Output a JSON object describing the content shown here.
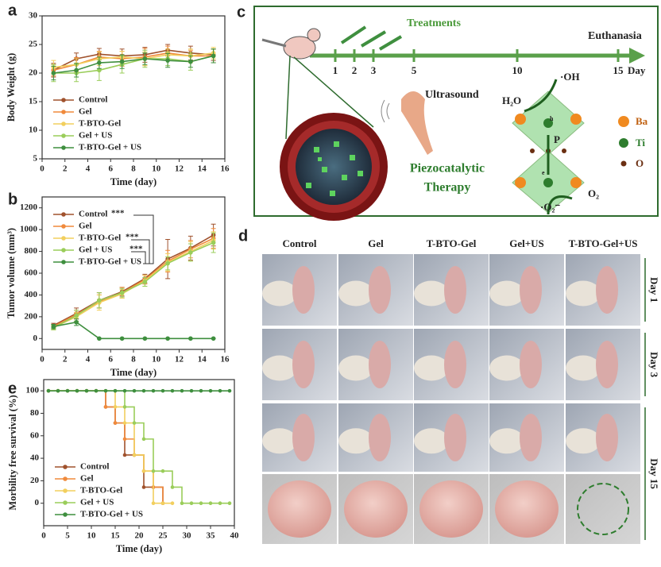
{
  "chart_data": [
    {
      "type": "line",
      "panel": "a",
      "x_label": "Time (day)",
      "y_label": "Body Weight (g)",
      "x": [
        1,
        3,
        5,
        7,
        9,
        11,
        13,
        15
      ],
      "xlim": [
        0,
        16
      ],
      "xticks": [
        0,
        2,
        4,
        6,
        8,
        10,
        12,
        14,
        16
      ],
      "ylim": [
        5,
        30
      ],
      "yticks": [
        5,
        10,
        15,
        20,
        25,
        30
      ],
      "legend": "lower left",
      "series": [
        {
          "name": "Control",
          "color": "#a0522d",
          "values": [
            20.5,
            22.5,
            23.3,
            23.0,
            23.2,
            24.0,
            23.5,
            23.2
          ],
          "errors": [
            1.2,
            1.0,
            1.0,
            1.2,
            1.3,
            1.0,
            1.2,
            1.0
          ]
        },
        {
          "name": "Gel",
          "color": "#f08a3c",
          "values": [
            20.5,
            21.5,
            22.8,
            22.5,
            22.8,
            23.5,
            23.0,
            23.0
          ],
          "errors": [
            1.0,
            1.2,
            1.0,
            1.3,
            1.5,
            1.2,
            1.0,
            1.2
          ]
        },
        {
          "name": "T-BTO-Gel",
          "color": "#f2cf5e",
          "values": [
            21.0,
            21.5,
            22.5,
            22.8,
            22.5,
            23.2,
            23.0,
            23.5
          ],
          "errors": [
            1.2,
            1.0,
            1.2,
            1.0,
            1.2,
            1.0,
            1.2,
            1.0
          ]
        },
        {
          "name": "Gel + US",
          "color": "#9acd5a",
          "values": [
            20.0,
            20.0,
            20.5,
            21.5,
            22.5,
            22.5,
            22.0,
            23.0
          ],
          "errors": [
            1.5,
            1.5,
            1.8,
            1.5,
            1.5,
            1.2,
            1.5,
            1.2
          ]
        },
        {
          "name": "T-BTO-Gel + US",
          "color": "#3f8f3f",
          "values": [
            20.0,
            20.5,
            21.8,
            22.0,
            22.5,
            22.2,
            22.0,
            23.0
          ],
          "errors": [
            1.2,
            1.2,
            1.0,
            1.2,
            1.0,
            1.2,
            1.0,
            1.2
          ]
        }
      ]
    },
    {
      "type": "line",
      "panel": "b",
      "x_label": "Time (day)",
      "y_label": "Tumor volume (mm³)",
      "x": [
        1,
        3,
        5,
        7,
        9,
        11,
        13,
        15
      ],
      "xlim": [
        0,
        16
      ],
      "xticks": [
        0,
        2,
        4,
        6,
        8,
        10,
        12,
        14,
        16
      ],
      "ylim": [
        -100,
        1300
      ],
      "yticks": [
        0,
        200,
        400,
        600,
        800,
        1000,
        1200
      ],
      "legend": "upper left",
      "annotations": [
        "***",
        "***",
        "***"
      ],
      "series": [
        {
          "name": "Control",
          "color": "#a0522d",
          "values": [
            120,
            230,
            350,
            430,
            550,
            730,
            830,
            950
          ],
          "errors": [
            20,
            50,
            70,
            40,
            40,
            180,
            110,
            100
          ]
        },
        {
          "name": "Gel",
          "color": "#f08a3c",
          "values": [
            110,
            220,
            340,
            420,
            540,
            710,
            820,
            920
          ],
          "errors": [
            20,
            40,
            60,
            50,
            40,
            100,
            80,
            90
          ]
        },
        {
          "name": "T-BTO-Gel",
          "color": "#f2cf5e",
          "values": [
            100,
            200,
            330,
            410,
            530,
            700,
            800,
            900
          ],
          "errors": [
            20,
            40,
            70,
            40,
            50,
            80,
            90,
            80
          ]
        },
        {
          "name": "Gel + US",
          "color": "#9acd5a",
          "values": [
            100,
            210,
            350,
            420,
            520,
            690,
            790,
            880
          ],
          "errors": [
            20,
            50,
            70,
            40,
            40,
            60,
            80,
            90
          ]
        },
        {
          "name": "T-BTO-Gel + US",
          "color": "#3f8f3f",
          "values": [
            110,
            150,
            0,
            0,
            0,
            0,
            0,
            0
          ],
          "errors": [
            20,
            30,
            0,
            0,
            0,
            0,
            0,
            0
          ]
        }
      ]
    },
    {
      "type": "step",
      "panel": "e",
      "x_label": "Time (day)",
      "y_label": "Morbility free survival (%)",
      "x": [
        1,
        3,
        5,
        7,
        9,
        11,
        13,
        15,
        17,
        19,
        21,
        23,
        25,
        27,
        29,
        31,
        33,
        35,
        37,
        39
      ],
      "xlim": [
        0,
        40
      ],
      "xticks": [
        0,
        5,
        10,
        15,
        20,
        25,
        30,
        35,
        40
      ],
      "ylim": [
        -20,
        110
      ],
      "yticks": [
        0,
        20,
        40,
        60,
        80,
        100
      ],
      "legend": "lower left",
      "series": [
        {
          "name": "Control",
          "color": "#a0522d",
          "values": [
            100,
            100,
            100,
            100,
            100,
            100,
            85.7,
            71.4,
            42.9,
            42.9,
            14.3,
            14.3,
            0,
            null,
            null,
            null,
            null,
            null,
            null,
            null
          ]
        },
        {
          "name": "Gel",
          "color": "#f08a3c",
          "values": [
            100,
            100,
            100,
            100,
            100,
            100,
            85.7,
            71.4,
            57.1,
            42.9,
            28.6,
            14.3,
            0,
            null,
            null,
            null,
            null,
            null,
            null,
            null
          ]
        },
        {
          "name": "T-BTO-Gel",
          "color": "#f2cf5e",
          "values": [
            100,
            100,
            100,
            100,
            100,
            100,
            100,
            85.7,
            71.4,
            42.9,
            28.6,
            0,
            0,
            0,
            null,
            null,
            null,
            null,
            null,
            null
          ]
        },
        {
          "name": "Gel + US",
          "color": "#9acd5a",
          "values": [
            100,
            100,
            100,
            100,
            100,
            100,
            100,
            100,
            85.7,
            71.4,
            57.1,
            28.6,
            28.6,
            14.3,
            0,
            0,
            0,
            0,
            0,
            0
          ]
        },
        {
          "name": "T-BTO-Gel + US",
          "color": "#3f8f3f",
          "values": [
            100,
            100,
            100,
            100,
            100,
            100,
            100,
            100,
            100,
            100,
            100,
            100,
            100,
            100,
            100,
            100,
            100,
            100,
            100,
            100
          ]
        }
      ]
    }
  ],
  "diagram": {
    "panel": "c",
    "treatments": "Treatments",
    "euthanasia": "Euthanasia",
    "days": [
      "1",
      "2",
      "3",
      "5",
      "10",
      "15"
    ],
    "day_unit": "Day",
    "ultrasound": "Ultrasound",
    "therapy": [
      "Piezocatalytic",
      "Therapy"
    ],
    "species": {
      "oh": "·OH",
      "h2o": "H₂O",
      "o2": "O₂",
      "o2_radical": "·O₂⁻",
      "p": "P",
      "e": "e",
      "h": "h"
    },
    "legend": [
      "Ba",
      "Ti",
      "O"
    ]
  },
  "photos": {
    "panel": "d",
    "columns": [
      "Control",
      "Gel",
      "T-BTO-Gel",
      "Gel+US",
      "T-BTO-Gel+US"
    ],
    "rows": [
      "Day 1",
      "Day 3",
      "Day 15"
    ]
  }
}
